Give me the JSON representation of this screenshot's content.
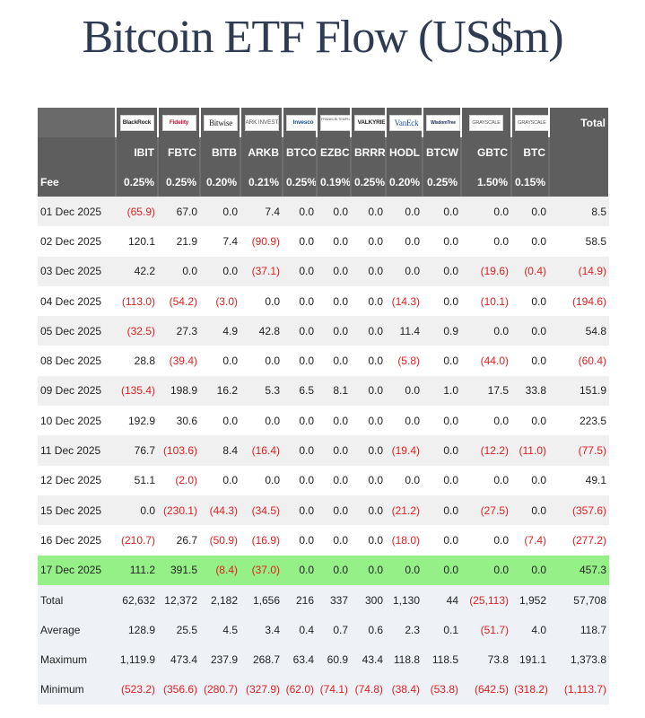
{
  "title": "Bitcoin ETF Flow (US$m)",
  "issuers": [
    "BlackRock",
    "Fidelity",
    "Bitwise",
    "ARK INVEST",
    "Invesco",
    "FRANKLIN TEMPLETON",
    "VALKYRIE",
    "VanEck",
    "WisdomTree",
    "GRAYSCALE",
    "GRAYSCALE"
  ],
  "total_label": "Total",
  "tickers": [
    "IBIT",
    "FBTC",
    "BITB",
    "ARKB",
    "BTCO",
    "EZBC",
    "BRRR",
    "HODL",
    "BTCW",
    "GBTC",
    "BTC"
  ],
  "fee_label": "Fee",
  "fees": [
    "0.25%",
    "0.25%",
    "0.20%",
    "0.21%",
    "0.25%",
    "0.19%",
    "0.25%",
    "0.20%",
    "0.25%",
    "1.50%",
    "0.15%"
  ],
  "rows": [
    {
      "date": "01 Dec 2025",
      "values": [
        "(65.9)",
        "67.0",
        "0.0",
        "7.4",
        "0.0",
        "0.0",
        "0.0",
        "0.0",
        "0.0",
        "0.0",
        "0.0",
        "8.5"
      ]
    },
    {
      "date": "02 Dec 2025",
      "values": [
        "120.1",
        "21.9",
        "7.4",
        "(90.9)",
        "0.0",
        "0.0",
        "0.0",
        "0.0",
        "0.0",
        "0.0",
        "0.0",
        "58.5"
      ]
    },
    {
      "date": "03 Dec 2025",
      "values": [
        "42.2",
        "0.0",
        "0.0",
        "(37.1)",
        "0.0",
        "0.0",
        "0.0",
        "0.0",
        "0.0",
        "(19.6)",
        "(0.4)",
        "(14.9)"
      ]
    },
    {
      "date": "04 Dec 2025",
      "values": [
        "(113.0)",
        "(54.2)",
        "(3.0)",
        "0.0",
        "0.0",
        "0.0",
        "0.0",
        "(14.3)",
        "0.0",
        "(10.1)",
        "0.0",
        "(194.6)"
      ]
    },
    {
      "date": "05 Dec 2025",
      "values": [
        "(32.5)",
        "27.3",
        "4.9",
        "42.8",
        "0.0",
        "0.0",
        "0.0",
        "11.4",
        "0.9",
        "0.0",
        "0.0",
        "54.8"
      ]
    },
    {
      "date": "08 Dec 2025",
      "values": [
        "28.8",
        "(39.4)",
        "0.0",
        "0.0",
        "0.0",
        "0.0",
        "0.0",
        "(5.8)",
        "0.0",
        "(44.0)",
        "0.0",
        "(60.4)"
      ]
    },
    {
      "date": "09 Dec 2025",
      "values": [
        "(135.4)",
        "198.9",
        "16.2",
        "5.3",
        "6.5",
        "8.1",
        "0.0",
        "0.0",
        "1.0",
        "17.5",
        "33.8",
        "151.9"
      ]
    },
    {
      "date": "10 Dec 2025",
      "values": [
        "192.9",
        "30.6",
        "0.0",
        "0.0",
        "0.0",
        "0.0",
        "0.0",
        "0.0",
        "0.0",
        "0.0",
        "0.0",
        "223.5"
      ]
    },
    {
      "date": "11 Dec 2025",
      "values": [
        "76.7",
        "(103.6)",
        "8.4",
        "(16.4)",
        "0.0",
        "0.0",
        "0.0",
        "(19.4)",
        "0.0",
        "(12.2)",
        "(11.0)",
        "(77.5)"
      ]
    },
    {
      "date": "12 Dec 2025",
      "values": [
        "51.1",
        "(2.0)",
        "0.0",
        "0.0",
        "0.0",
        "0.0",
        "0.0",
        "0.0",
        "0.0",
        "0.0",
        "0.0",
        "49.1"
      ]
    },
    {
      "date": "15 Dec 2025",
      "values": [
        "0.0",
        "(230.1)",
        "(44.3)",
        "(34.5)",
        "0.0",
        "0.0",
        "0.0",
        "(21.2)",
        "0.0",
        "(27.5)",
        "0.0",
        "(357.6)"
      ]
    },
    {
      "date": "16 Dec 2025",
      "values": [
        "(210.7)",
        "26.7",
        "(50.9)",
        "(16.9)",
        "0.0",
        "0.0",
        "0.0",
        "(18.0)",
        "0.0",
        "0.0",
        "(7.4)",
        "(277.2)"
      ]
    },
    {
      "date": "17 Dec 2025",
      "values": [
        "111.2",
        "391.5",
        "(8.4)",
        "(37.0)",
        "0.0",
        "0.0",
        "0.0",
        "0.0",
        "0.0",
        "0.0",
        "0.0",
        "457.3"
      ]
    }
  ],
  "highlight_row": "17 Dec 2025",
  "highlight_color": "#95f087",
  "negative_color": "#e02020",
  "summary": [
    {
      "label": "Total",
      "values": [
        "62,632",
        "12,372",
        "2,182",
        "1,656",
        "216",
        "337",
        "300",
        "1,130",
        "44",
        "(25,113)",
        "1,952",
        "57,708"
      ]
    },
    {
      "label": "Average",
      "values": [
        "128.9",
        "25.5",
        "4.5",
        "3.4",
        "0.4",
        "0.7",
        "0.6",
        "2.3",
        "0.1",
        "(51.7)",
        "4.0",
        "118.7"
      ]
    },
    {
      "label": "Maximum",
      "values": [
        "1,119.9",
        "473.4",
        "237.9",
        "268.7",
        "63.4",
        "60.9",
        "43.4",
        "118.8",
        "118.5",
        "73.8",
        "191.1",
        "1,373.8"
      ]
    },
    {
      "label": "Minimum",
      "values": [
        "(523.2)",
        "(356.6)",
        "(280.7)",
        "(327.9)",
        "(62.0)",
        "(74.1)",
        "(74.8)",
        "(38.4)",
        "(53.8)",
        "(642.5)",
        "(318.2)",
        "(1,113.7)"
      ]
    }
  ]
}
